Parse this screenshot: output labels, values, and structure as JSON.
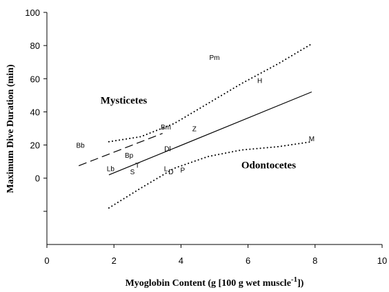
{
  "chart_data": {
    "type": "scatter",
    "xlabel": "Myoglobin Content (g [100 g wet muscle",
    "xlabel_sup": "-1",
    "xlabel_end": "])",
    "ylabel": "Maximum Dive Duration (min)",
    "xlim": [
      0,
      10
    ],
    "ylim": [
      -40,
      100
    ],
    "x_ticks": [
      0,
      2,
      4,
      6,
      8,
      10
    ],
    "x_tick_labels": [
      "0",
      "2",
      "4",
      "6",
      "8",
      "10"
    ],
    "y_ticks": [
      100,
      80,
      60,
      40,
      20,
      0,
      -20
    ],
    "y_tick_labels": [
      "100",
      "80",
      "60",
      "40",
      "20",
      "0",
      ""
    ],
    "grid": false,
    "points": [
      {
        "label": "Pm",
        "x": 5.0,
        "y": 73
      },
      {
        "label": "H",
        "x": 6.35,
        "y": 59
      },
      {
        "label": "M",
        "x": 7.9,
        "y": 24
      },
      {
        "label": "Bm",
        "x": 3.55,
        "y": 31
      },
      {
        "label": "Z",
        "x": 4.4,
        "y": 30
      },
      {
        "label": "Bb",
        "x": 1.0,
        "y": 20
      },
      {
        "label": "Bp",
        "x": 2.45,
        "y": 14
      },
      {
        "label": "Dl",
        "x": 3.6,
        "y": 18
      },
      {
        "label": "Lb",
        "x": 1.9,
        "y": 6
      },
      {
        "label": "T",
        "x": 2.7,
        "y": 8
      },
      {
        "label": "S",
        "x": 2.55,
        "y": 4
      },
      {
        "label": "L",
        "x": 3.55,
        "y": 6
      },
      {
        "label": "D",
        "x": 3.7,
        "y": 4
      },
      {
        "label": "P",
        "x": 4.05,
        "y": 5
      }
    ],
    "group_labels": [
      {
        "text": "Mysticetes",
        "x": 1.6,
        "y": 45
      },
      {
        "text": "Odontocetes",
        "x": 5.8,
        "y": 6
      }
    ],
    "lines": [
      {
        "style": "solid",
        "points": [
          [
            1.85,
            2
          ],
          [
            7.9,
            52
          ]
        ]
      },
      {
        "style": "dashed",
        "points": [
          [
            0.95,
            7.5
          ],
          [
            3.45,
            27
          ]
        ]
      },
      {
        "style": "dotted",
        "points": [
          [
            1.85,
            22
          ],
          [
            2.8,
            25
          ],
          [
            3.8,
            33
          ],
          [
            4.8,
            45
          ],
          [
            5.8,
            57
          ],
          [
            6.9,
            69
          ],
          [
            7.9,
            81
          ]
        ]
      },
      {
        "style": "dotted",
        "points": [
          [
            1.85,
            -18
          ],
          [
            2.8,
            -6
          ],
          [
            3.8,
            6
          ],
          [
            4.8,
            13
          ],
          [
            5.8,
            17
          ],
          [
            6.9,
            19
          ],
          [
            7.9,
            22
          ]
        ]
      }
    ]
  }
}
